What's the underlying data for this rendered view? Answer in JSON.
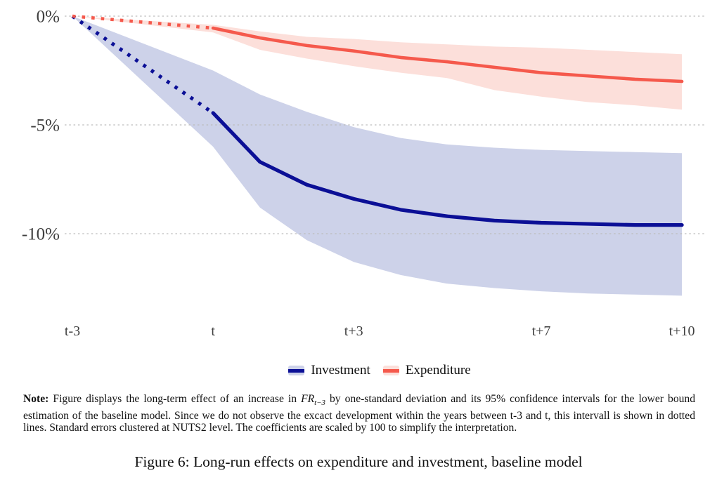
{
  "figure": {
    "caption": "Figure 6: Long-run effects on expenditure and investment, baseline model",
    "note": {
      "label": "Note:",
      "before_math": " Figure displays the long-term effect of an increase in ",
      "math_base": "FR",
      "math_sub": "t−3",
      "after_math": " by one-standard deviation and its 95% confidence intervals for the lower bound estimation of the baseline model. Since we do not observe the excact development within the years between t-3 and t, this intervall is shown in dotted lines. Standard errors clustered at NUTS2 level. The coefficients are scaled by 100 to simplify the interpretation."
    }
  },
  "legend": {
    "items": [
      {
        "label": "Investment",
        "line_color": "#0B0F96",
        "band_color": "#CDD2E9"
      },
      {
        "label": "Expenditure",
        "line_color": "#F5594C",
        "band_color": "#FCDFDA"
      }
    ]
  },
  "colors": {
    "grid": "#BDBDBD",
    "tick_text": "#3F3F3F",
    "background": "#FFFFFF"
  },
  "chart_data": {
    "type": "line",
    "title": "",
    "xlabel": "",
    "ylabel": "",
    "x_years": [
      -3,
      0,
      1,
      2,
      3,
      4,
      5,
      6,
      7,
      8,
      9,
      10
    ],
    "x_ticks": [
      {
        "label": "t-3",
        "year": -3
      },
      {
        "label": "t",
        "year": 0
      },
      {
        "label": "t+3",
        "year": 3
      },
      {
        "label": "t+7",
        "year": 7
      },
      {
        "label": "t+10",
        "year": 10
      }
    ],
    "y_ticks": [
      {
        "label": "0%",
        "value": 0
      },
      {
        "label": "-5%",
        "value": -5
      },
      {
        "label": "-10%",
        "value": -10
      }
    ],
    "ylim": [
      -13.6,
      0.6
    ],
    "grid": "horizontal-dotted",
    "legend_position": "bottom",
    "ci_level": "95%",
    "dotted_segment": "t-3 to t shown dotted (years not observed)",
    "series": [
      {
        "name": "Investment",
        "line_color": "#0B0F96",
        "band_color": "#CDD2E9",
        "values": [
          0,
          -4.45,
          -6.7,
          -7.75,
          -8.4,
          -8.9,
          -9.2,
          -9.4,
          -9.5,
          -9.55,
          -9.6,
          -9.6
        ],
        "ci_upper": [
          0,
          -2.5,
          -3.6,
          -4.4,
          -5.1,
          -5.6,
          -5.9,
          -6.05,
          -6.15,
          -6.2,
          -6.25,
          -6.3
        ],
        "ci_lower": [
          0,
          -6.0,
          -8.8,
          -10.3,
          -11.3,
          -11.9,
          -12.3,
          -12.5,
          -12.65,
          -12.75,
          -12.8,
          -12.85
        ]
      },
      {
        "name": "Expenditure",
        "line_color": "#F5594C",
        "band_color": "#FCDFDA",
        "values": [
          0,
          -0.55,
          -1.0,
          -1.35,
          -1.6,
          -1.9,
          -2.1,
          -2.35,
          -2.6,
          -2.75,
          -2.9,
          -3.0
        ],
        "ci_upper": [
          0,
          -0.4,
          -0.7,
          -0.95,
          -1.05,
          -1.2,
          -1.3,
          -1.4,
          -1.45,
          -1.55,
          -1.65,
          -1.75
        ],
        "ci_lower": [
          0,
          -0.75,
          -1.55,
          -1.95,
          -2.3,
          -2.6,
          -2.85,
          -3.4,
          -3.7,
          -3.95,
          -4.1,
          -4.3
        ]
      }
    ]
  }
}
